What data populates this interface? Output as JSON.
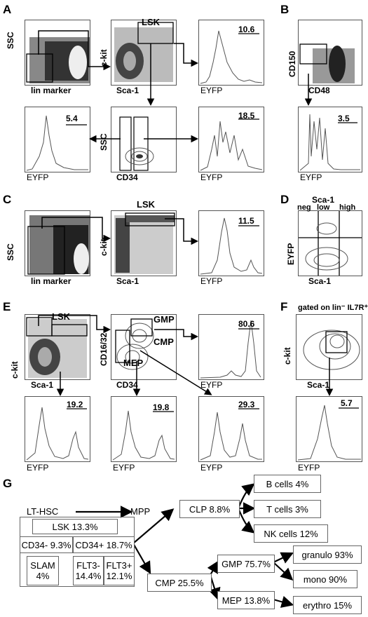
{
  "panel_labels": [
    "A",
    "B",
    "C",
    "D",
    "E",
    "F",
    "G"
  ],
  "axis": {
    "ssc": "SSC",
    "lin": "lin marker",
    "ckit": "c-kit",
    "sca1": "Sca-1",
    "eyfp": "EYFP",
    "cd34": "CD34",
    "cd150": "CD150",
    "cd48": "CD48",
    "cd1632": "CD16/32"
  },
  "gates": {
    "lsk": "LSK",
    "gmp": "GMP",
    "cmp": "CMP",
    "mep": "MEP"
  },
  "values": {
    "A_lsk": "10.6",
    "A_lin": "5.4",
    "A_cd34": "18.5",
    "B_slam": "3.5",
    "C_lsk": "11.5",
    "E_lsk": "80.6",
    "E_1": "19.2",
    "E_2": "19.8",
    "E_3": "29.3",
    "F": "5.7"
  },
  "D": {
    "title": "Sca-1",
    "neg": "neg",
    "low": "low",
    "high": "high"
  },
  "F": {
    "gate_text": "gated on lin⁻ IL7R⁺"
  },
  "G": {
    "lthsc": "LT-HSC",
    "mpp": "MPP",
    "lsk": "LSK  13.3%",
    "cd34neg": "CD34- 9.3%",
    "cd34pos": "CD34+ 18.7%",
    "slam_1": "SLAM",
    "slam_2": "4%",
    "flt3neg_1": "FLT3-",
    "flt3neg_2": "14.4%",
    "flt3pos_1": "FLT3+",
    "flt3pos_2": "12.1%",
    "clp": "CLP 8.8%",
    "cmp": "CMP 25.5%",
    "bcells": "B cells 4%",
    "tcells": "T cells 3%",
    "nkcells": "NK cells 12%",
    "gmp": "GMP 75.7%",
    "mep": "MEP 13.8%",
    "granulo": "granulo 93%",
    "mono": "mono 90%",
    "erythro": "erythro 15%"
  }
}
